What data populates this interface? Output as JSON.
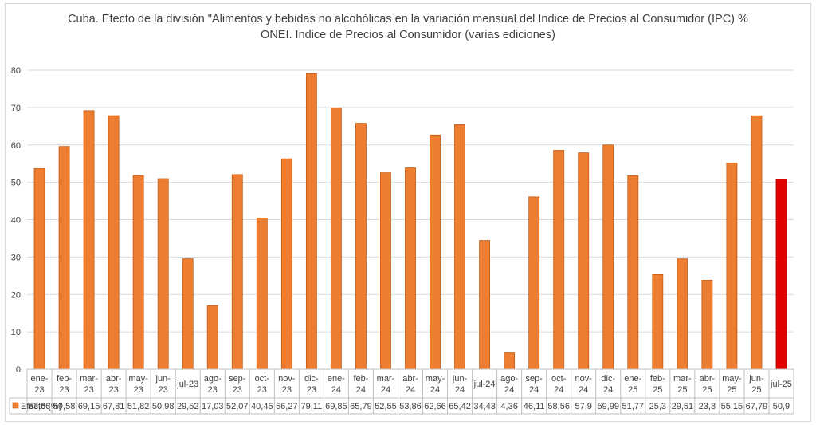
{
  "chart_data": {
    "type": "bar",
    "title": "Cuba. Efecto de la división \"Alimentos y bebidas no alcohólicas en la variación mensual del Indice de Precios al Consumidor (IPC) %",
    "subtitle": "ONEI. Indice de Precios al Consumidor (varias ediciones)",
    "xlabel": "",
    "ylabel": "",
    "ylim": [
      0,
      80
    ],
    "yticks": [
      0,
      10,
      20,
      30,
      40,
      50,
      60,
      70,
      80
    ],
    "grid": true,
    "legend": "data-table-left",
    "series": [
      {
        "name": "Efecto (%)",
        "color": "#ED7D31",
        "highlight_color": "#E00000",
        "highlight_index": 30,
        "values": [
          53.66,
          59.58,
          69.15,
          67.81,
          51.82,
          50.98,
          29.52,
          17.03,
          52.07,
          40.45,
          56.27,
          79.11,
          69.85,
          65.79,
          52.55,
          53.86,
          62.66,
          65.42,
          34.43,
          4.36,
          46.11,
          58.56,
          57.9,
          59.99,
          51.77,
          25.3,
          29.51,
          23.8,
          55.15,
          67.79,
          50.9
        ],
        "labels": [
          "53,66",
          "59,58",
          "69,15",
          "67,81",
          "51,82",
          "50,98",
          "29,52",
          "17,03",
          "52,07",
          "40,45",
          "56,27",
          "79,11",
          "69,85",
          "65,79",
          "52,55",
          "53,86",
          "62,66",
          "65,42",
          "34,43",
          "4,36",
          "46,11",
          "58,56",
          "57,9",
          "59,99",
          "51,77",
          "25,3",
          "29,51",
          "23,8",
          "55,15",
          "67,79",
          "50,9"
        ]
      }
    ],
    "categories": [
      [
        "ene-",
        "23"
      ],
      [
        "feb-",
        "23"
      ],
      [
        "mar-",
        "23"
      ],
      [
        "abr-",
        "23"
      ],
      [
        "may-",
        "23"
      ],
      [
        "jun-",
        "23"
      ],
      [
        "jul-23"
      ],
      [
        "ago-",
        "23"
      ],
      [
        "sep-",
        "23"
      ],
      [
        "oct-",
        "23"
      ],
      [
        "nov-",
        "23"
      ],
      [
        "dic-",
        "23"
      ],
      [
        "ene-",
        "24"
      ],
      [
        "feb-",
        "24"
      ],
      [
        "mar-",
        "24"
      ],
      [
        "abr-",
        "24"
      ],
      [
        "may-",
        "24"
      ],
      [
        "jun-",
        "24"
      ],
      [
        "jul-24"
      ],
      [
        "ago-",
        "24"
      ],
      [
        "sep-",
        "24"
      ],
      [
        "oct-",
        "24"
      ],
      [
        "nov-",
        "24"
      ],
      [
        "dic-",
        "24"
      ],
      [
        "ene-",
        "25"
      ],
      [
        "feb-",
        "25"
      ],
      [
        "mar-",
        "25"
      ],
      [
        "abr-",
        "25"
      ],
      [
        "may-",
        "25"
      ],
      [
        "jun-",
        "25"
      ],
      [
        "jul-25"
      ]
    ]
  }
}
